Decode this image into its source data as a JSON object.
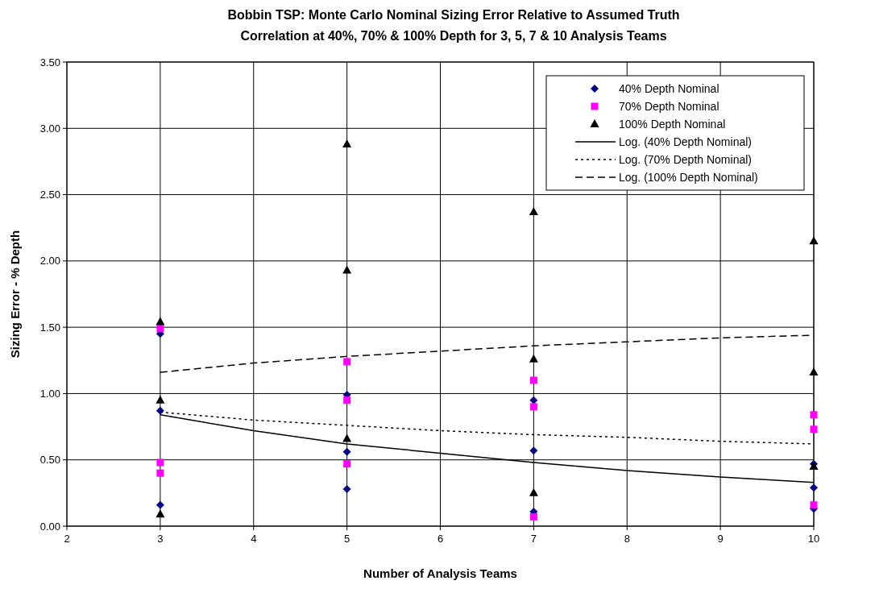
{
  "chart_data": {
    "type": "scatter",
    "title": "Bobbin TSP:  Monte Carlo Nominal Sizing Error Relative to Assumed Truth",
    "subtitle": "Correlation at 40%, 70% & 100% Depth for 3, 5, 7 & 10 Analysis Teams",
    "xlabel": "Number of Analysis Teams",
    "ylabel": "Sizing Error - % Depth",
    "xlim": [
      2,
      10
    ],
    "xticks": [
      2,
      3,
      4,
      5,
      6,
      7,
      8,
      9,
      10
    ],
    "ylim": [
      0,
      3.5
    ],
    "yticks": [
      {
        "value": 0,
        "label": "0.00"
      },
      {
        "value": 0.5,
        "label": "0.50"
      },
      {
        "value": 1,
        "label": "1.00"
      },
      {
        "value": 1.5,
        "label": "1.50"
      },
      {
        "value": 2,
        "label": "2.00"
      },
      {
        "value": 2.5,
        "label": "2.50"
      },
      {
        "value": 3,
        "label": "3.00"
      },
      {
        "value": 3.5,
        "label": "3.50"
      }
    ],
    "grid": true,
    "legend": "top right",
    "series": [
      {
        "name": "40% Depth Nominal",
        "marker": "diamond",
        "color": "#000080",
        "x": [
          3,
          3,
          3,
          5,
          5,
          5,
          7,
          7,
          7,
          10,
          10,
          10
        ],
        "values": [
          1.45,
          0.87,
          0.16,
          0.99,
          0.56,
          0.28,
          0.95,
          0.57,
          0.11,
          0.47,
          0.29,
          0.13
        ]
      },
      {
        "name": "70% Depth Nominal",
        "marker": "square",
        "color": "#ff00ff",
        "x": [
          3,
          3,
          3,
          5,
          5,
          5,
          7,
          7,
          7,
          10,
          10,
          10
        ],
        "values": [
          1.49,
          0.48,
          0.4,
          1.24,
          0.95,
          0.47,
          1.1,
          0.9,
          0.07,
          0.84,
          0.73,
          0.16
        ]
      },
      {
        "name": "100% Depth Nominal",
        "marker": "triangle",
        "color": "#000000",
        "x": [
          3,
          3,
          3,
          5,
          5,
          5,
          7,
          7,
          7,
          10,
          10,
          10
        ],
        "values": [
          1.54,
          0.95,
          0.09,
          2.88,
          1.93,
          0.66,
          2.37,
          1.26,
          0.25,
          2.15,
          1.16,
          0.45
        ]
      },
      {
        "name": "Log. (40% Depth Nominal)",
        "type": "line",
        "line_style": "solid",
        "color": "#000000",
        "x": [
          3,
          4,
          5,
          6,
          7,
          8,
          9,
          10
        ],
        "values": [
          0.84,
          0.72,
          0.62,
          0.55,
          0.48,
          0.42,
          0.37,
          0.33
        ]
      },
      {
        "name": "Log. (70% Depth Nominal)",
        "type": "line",
        "line_style": "dotted",
        "color": "#000000",
        "x": [
          3,
          4,
          5,
          6,
          7,
          8,
          9,
          10
        ],
        "values": [
          0.86,
          0.8,
          0.76,
          0.72,
          0.69,
          0.67,
          0.64,
          0.62
        ]
      },
      {
        "name": "Log. (100% Depth Nominal)",
        "type": "line",
        "line_style": "dashed",
        "color": "#000000",
        "x": [
          3,
          4,
          5,
          6,
          7,
          8,
          9,
          10
        ],
        "values": [
          1.16,
          1.23,
          1.28,
          1.32,
          1.36,
          1.39,
          1.42,
          1.44
        ]
      }
    ]
  }
}
